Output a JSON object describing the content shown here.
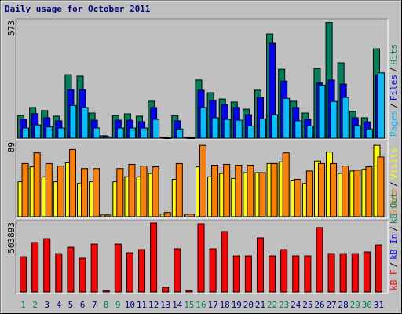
{
  "chart_data": {
    "type": "bar",
    "title": "Daily usage for October 2011",
    "categories": [
      "1",
      "2",
      "3",
      "4",
      "5",
      "6",
      "7",
      "8",
      "9",
      "10",
      "11",
      "12",
      "13",
      "14",
      "15",
      "16",
      "17",
      "18",
      "19",
      "20",
      "21",
      "22",
      "23",
      "24",
      "25",
      "26",
      "27",
      "28",
      "29",
      "30",
      "31"
    ],
    "weekend": [
      true,
      true,
      false,
      false,
      false,
      false,
      false,
      true,
      true,
      false,
      false,
      false,
      false,
      false,
      true,
      true,
      false,
      false,
      false,
      false,
      false,
      true,
      true,
      false,
      false,
      false,
      false,
      false,
      true,
      true,
      false
    ],
    "weekday_color": "#00007f",
    "weekend_color": "#00805c",
    "separator": "/",
    "panels": [
      {
        "ylim": [
          0,
          573
        ],
        "yticks": [
          573
        ],
        "series": [
          {
            "name": "Hits",
            "color": "#00805c",
            "values": [
              111,
              150,
              135,
              108,
              311,
              304,
              123,
              12,
              111,
              119,
              108,
              181,
              4,
              111,
              4,
              285,
              223,
              192,
              177,
              142,
              235,
              511,
              338,
              181,
              123,
              342,
              567,
              369,
              131,
              100,
              438
            ]
          },
          {
            "name": "Files",
            "color": "#0000ff",
            "values": [
              93,
              120,
              100,
              85,
              238,
              238,
              88,
              8,
              88,
              88,
              81,
              150,
              3,
              85,
              3,
              235,
              185,
              165,
              150,
              115,
              200,
              465,
              280,
              150,
              92,
              270,
              285,
              265,
              100,
              80,
              310
            ]
          },
          {
            "name": "Pages",
            "color": "#00c0ff",
            "values": [
              50,
              65,
              55,
              50,
              160,
              150,
              50,
              5,
              50,
              50,
              50,
              92,
              2,
              45,
              2,
              150,
              100,
              92,
              88,
              60,
              95,
              115,
              195,
              85,
              60,
              260,
              180,
              200,
              62,
              45,
              320
            ]
          }
        ]
      },
      {
        "ylim": [
          0,
          89
        ],
        "yticks": [
          89
        ],
        "series": [
          {
            "name": "Visits",
            "color": "#ffff00",
            "values": [
              42,
              60,
              48,
              42,
              65,
              40,
              42,
              2,
              42,
              48,
              48,
              52,
              3,
              45,
              2,
              60,
              48,
              52,
              46,
              53,
              53,
              64,
              66,
              44,
              40,
              67,
              78,
              52,
              55,
              57,
              86
            ]
          },
          {
            "name": "Sites",
            "color": "#ff8000",
            "values": [
              64,
              77,
              64,
              61,
              81,
              58,
              58,
              2,
              58,
              63,
              61,
              60,
              5,
              64,
              3,
              86,
              62,
              63,
              62,
              62,
              53,
              64,
              77,
              45,
              55,
              64,
              64,
              61,
              56,
              60,
              72
            ]
          }
        ]
      },
      {
        "ylim": [
          0,
          503893
        ],
        "yticks": [
          503893
        ],
        "series": [
          {
            "name": "kB F",
            "color": "#ff0000",
            "values": [
              257000,
              361000,
              389000,
              280000,
              326000,
              246000,
              349000,
              11000,
              349000,
              286000,
              309000,
              503893,
              34000,
              315000,
              11000,
              498000,
              315000,
              441000,
              263000,
              263000,
              395000,
              263000,
              309000,
              263000,
              263000,
              470000,
              280000,
              280000,
              280000,
              292000,
              343000
            ]
          }
        ],
        "legend_only": [
          {
            "name": "kB In",
            "color": "#0000ff"
          },
          {
            "name": "kB Out",
            "color": "#00805c"
          }
        ]
      }
    ]
  }
}
